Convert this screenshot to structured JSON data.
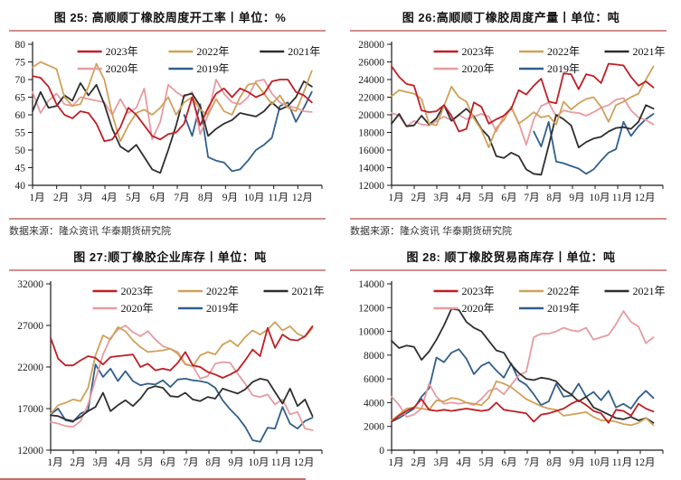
{
  "colors": {
    "red": "#bf1e24",
    "gold": "#d0a159",
    "dark": "#2e2e2e",
    "pink": "#e79ba1",
    "blue": "#315f8c",
    "rule": "#cf8f8d",
    "axis": "#1a1a1a"
  },
  "source_label": "数据来源：隆众资讯 华泰期货研究院",
  "x_labels": [
    "1月",
    "2月",
    "3月",
    "4月",
    "5月",
    "6月",
    "7月",
    "8月",
    "9月",
    "10月",
    "11月",
    "12月"
  ],
  "legend_rows": [
    [
      "2023年",
      "2022年",
      "2021年"
    ],
    [
      "2020年",
      "2019年"
    ]
  ],
  "chart_data": [
    {
      "id": "fig25",
      "type": "line",
      "title": "图 25: 高顺顺丁橡胶周度开工率丨单位：%",
      "ylim": [
        40,
        80
      ],
      "ystep": 5,
      "grid": false,
      "legend_position": "top-center",
      "series": [
        {
          "name": "2023年",
          "color": "red",
          "values": [
            71,
            70.5,
            68,
            63,
            60,
            59,
            61,
            60.5,
            57.5,
            52.5,
            53,
            56.5,
            62,
            60,
            57,
            54,
            53,
            54.5,
            55,
            57.5,
            65,
            57,
            62,
            66,
            67.5,
            65,
            67.5,
            66.5,
            65,
            66,
            69.5,
            70,
            70,
            66.5,
            65.5,
            63.5
          ]
        },
        {
          "name": "2022年",
          "color": "gold",
          "values": [
            73.5,
            75,
            74,
            73,
            65,
            62.5,
            63,
            68,
            74.5,
            70,
            60,
            52.5,
            57,
            60.5,
            61.5,
            60,
            62,
            65,
            60,
            63.5,
            65,
            61.5,
            60,
            64.5,
            61,
            60,
            65,
            68.5,
            69,
            66,
            63,
            65.5,
            62,
            61,
            66.5,
            72.5
          ]
        },
        {
          "name": "2021年",
          "color": "dark",
          "values": [
            61,
            66.5,
            62,
            62.5,
            65.5,
            64,
            69,
            65.5,
            68.5,
            63,
            56,
            51,
            49.5,
            51.5,
            48,
            44.5,
            43.5,
            50,
            57,
            65.5,
            66,
            62.5,
            54,
            56,
            57.5,
            58.5,
            60.5,
            60,
            59.5,
            61,
            63.5,
            61.5,
            62.5,
            65,
            69.5,
            68
          ]
        },
        {
          "name": "2020年",
          "color": "pink",
          "values": [
            66.5,
            60.5,
            64,
            66,
            63,
            62.5,
            65,
            64.5,
            64,
            63.5,
            60,
            64.5,
            60.5,
            62,
            67.5,
            53,
            58,
            68.5,
            66.5,
            65,
            66.5,
            54.5,
            60,
            70,
            66,
            63.5,
            63,
            65,
            69.5,
            70,
            66,
            63.5,
            62.5,
            62,
            61,
            60.8
          ]
        },
        {
          "name": "2019年",
          "color": "blue",
          "values": [
            null,
            null,
            null,
            null,
            null,
            null,
            null,
            null,
            null,
            null,
            null,
            null,
            null,
            null,
            null,
            null,
            null,
            null,
            null,
            60,
            54,
            63,
            48,
            47,
            46.5,
            44,
            44.5,
            47,
            50,
            51.5,
            53.5,
            62.5,
            63.5,
            58,
            62,
            66.5
          ]
        }
      ]
    },
    {
      "id": "fig26",
      "type": "line",
      "title": "图 26:高顺顺丁橡胶周度产量丨单位：吨",
      "ylim": [
        12000,
        28000
      ],
      "ystep": 2000,
      "grid": false,
      "legend_position": "top-center",
      "series": [
        {
          "name": "2023年",
          "color": "red",
          "values": [
            25500,
            24300,
            23500,
            23300,
            20500,
            20300,
            20400,
            21100,
            19900,
            18100,
            18400,
            21400,
            20900,
            19000,
            19500,
            19900,
            20700,
            22800,
            22300,
            23300,
            24100,
            21500,
            21300,
            24700,
            24600,
            22900,
            24600,
            24400,
            23600,
            25800,
            25700,
            25600,
            24300,
            23300,
            23800,
            23100
          ]
        },
        {
          "name": "2022年",
          "color": "gold",
          "values": [
            22100,
            22800,
            22600,
            22400,
            21800,
            19000,
            18800,
            21000,
            23200,
            22000,
            21500,
            19600,
            18300,
            16300,
            18500,
            19400,
            20900,
            19000,
            19600,
            20300,
            19700,
            19900,
            18900,
            21500,
            20600,
            21300,
            21800,
            22000,
            20900,
            19200,
            21100,
            21500,
            22000,
            22400,
            24000,
            25500
          ]
        },
        {
          "name": "2021年",
          "color": "dark",
          "values": [
            19000,
            20100,
            18700,
            18800,
            19900,
            18900,
            19600,
            21100,
            19300,
            20000,
            20700,
            19800,
            18400,
            17500,
            15300,
            15100,
            15700,
            15300,
            13800,
            13300,
            13200,
            16500,
            20000,
            19500,
            18800,
            16300,
            16900,
            17300,
            17500,
            18100,
            18500,
            18600,
            18400,
            19200,
            21100,
            20700
          ]
        },
        {
          "name": "2020年",
          "color": "pink",
          "values": [
            20200,
            19900,
            18700,
            19300,
            18900,
            18800,
            19300,
            19800,
            19400,
            20000,
            19500,
            19800,
            20100,
            19800,
            18100,
            19900,
            20800,
            19100,
            16600,
            19500,
            21000,
            21400,
            19800,
            20500,
            20300,
            20200,
            19900,
            20300,
            20800,
            21100,
            21700,
            21900,
            20500,
            19700,
            19400,
            18900
          ]
        },
        {
          "name": "2019年",
          "color": "blue",
          "values": [
            null,
            null,
            null,
            null,
            null,
            null,
            null,
            null,
            null,
            null,
            null,
            null,
            null,
            null,
            null,
            null,
            null,
            null,
            null,
            18100,
            16400,
            19200,
            14700,
            14500,
            14200,
            13900,
            13300,
            13800,
            14800,
            15700,
            16100,
            19200,
            17600,
            18700,
            19500,
            20100
          ]
        }
      ]
    },
    {
      "id": "fig27",
      "type": "line",
      "title": "图 27:顺丁橡胶企业库存丨单位：吨",
      "ylim": [
        12000,
        32000
      ],
      "ystep": 5000,
      "grid": false,
      "legend_position": "top-center",
      "series": [
        {
          "name": "2023年",
          "color": "red",
          "values": [
            25500,
            23000,
            22200,
            22200,
            22800,
            23300,
            23100,
            22300,
            23200,
            23300,
            23400,
            23500,
            22000,
            22400,
            21600,
            21800,
            21600,
            22500,
            23800,
            22200,
            22000,
            21400,
            21100,
            20700,
            21100,
            21600,
            22800,
            24100,
            23300,
            26700,
            24300,
            25900,
            25300,
            25200,
            25700,
            26900
          ]
        },
        {
          "name": "2022年",
          "color": "gold",
          "values": [
            16400,
            17400,
            17700,
            18100,
            17900,
            19500,
            23400,
            25800,
            25300,
            26800,
            26300,
            25200,
            24400,
            23800,
            23900,
            24000,
            24200,
            23600,
            22300,
            22100,
            23400,
            23800,
            23500,
            24700,
            25200,
            24500,
            25600,
            26400,
            25900,
            26500,
            27400,
            26400,
            26900,
            26000,
            25600,
            26700
          ]
        },
        {
          "name": "2021年",
          "color": "dark",
          "values": [
            16200,
            16100,
            15700,
            15500,
            16000,
            16700,
            17200,
            18900,
            16700,
            17400,
            18000,
            17300,
            18200,
            19400,
            19700,
            19500,
            18500,
            18400,
            18900,
            18100,
            17900,
            18400,
            18200,
            19400,
            19100,
            18800,
            19300,
            20200,
            20600,
            20400,
            19000,
            17600,
            19400,
            17300,
            18100,
            16100
          ]
        },
        {
          "name": "2020年",
          "color": "pink",
          "values": [
            15400,
            15200,
            14900,
            14800,
            15500,
            17500,
            20500,
            23500,
            25500,
            26500,
            27000,
            26200,
            25700,
            26300,
            25300,
            24500,
            24200,
            23800,
            22400,
            22100,
            20600,
            20900,
            22400,
            22600,
            22500,
            21200,
            20000,
            18600,
            18400,
            18700,
            17500,
            18100,
            16300,
            16600,
            14600,
            14400
          ]
        },
        {
          "name": "2019年",
          "color": "blue",
          "values": [
            16300,
            17000,
            15600,
            15400,
            16400,
            16800,
            22300,
            20800,
            21800,
            20300,
            21500,
            20300,
            19800,
            20000,
            19900,
            20400,
            19600,
            20500,
            20600,
            20400,
            20300,
            20100,
            19500,
            18000,
            16900,
            16000,
            14800,
            13200,
            13000,
            14700,
            14600,
            17200,
            15200,
            14600,
            15500,
            15900
          ]
        }
      ]
    },
    {
      "id": "fig28",
      "type": "line",
      "title": "图 28: 顺丁橡胶贸易商库存丨单位：吨",
      "ylim": [
        0,
        14000
      ],
      "ystep": 2000,
      "grid": false,
      "legend_position": "top-center",
      "series": [
        {
          "name": "2023年",
          "color": "red",
          "values": [
            2400,
            2900,
            3300,
            3600,
            4300,
            3400,
            3300,
            3400,
            3300,
            3400,
            3500,
            3400,
            3300,
            3400,
            4000,
            3400,
            3300,
            3200,
            3100,
            2400,
            3000,
            3100,
            3300,
            3500,
            3900,
            4200,
            3800,
            3300,
            3100,
            2300,
            3400,
            3300,
            2900,
            3900,
            3500,
            3250
          ]
        },
        {
          "name": "2022年",
          "color": "gold",
          "values": [
            2500,
            3000,
            3500,
            3600,
            3500,
            3400,
            4200,
            4100,
            4400,
            4300,
            4000,
            3900,
            3800,
            4400,
            5800,
            5600,
            5300,
            4800,
            4300,
            4000,
            3700,
            3500,
            3400,
            2900,
            3000,
            3100,
            3200,
            2800,
            2500,
            2500,
            2400,
            2200,
            2100,
            2300,
            2700,
            2100
          ]
        },
        {
          "name": "2021年",
          "color": "dark",
          "values": [
            9200,
            8600,
            8800,
            8700,
            7600,
            8300,
            9300,
            10500,
            11900,
            11800,
            10800,
            10300,
            10000,
            9200,
            8400,
            8200,
            7200,
            6500,
            6000,
            5900,
            6100,
            6000,
            5800,
            5100,
            4700,
            4100,
            4500,
            3600,
            3300,
            3000,
            2700,
            2600,
            2800,
            2500,
            2700,
            2300
          ]
        },
        {
          "name": "2020年",
          "color": "pink",
          "values": [
            4500,
            3800,
            2800,
            3000,
            3500,
            5600,
            4500,
            3900,
            4000,
            3900,
            4000,
            3800,
            4300,
            5000,
            5200,
            4700,
            5500,
            6300,
            6600,
            9500,
            9800,
            9800,
            10000,
            10300,
            10100,
            10000,
            10300,
            9300,
            9500,
            9700,
            10600,
            11700,
            10800,
            10400,
            9000,
            9500
          ]
        },
        {
          "name": "2019年",
          "color": "blue",
          "values": [
            2400,
            2700,
            3100,
            3500,
            4500,
            5200,
            7800,
            7400,
            8200,
            8500,
            7700,
            6400,
            7100,
            7400,
            6700,
            6100,
            7300,
            5900,
            5500,
            4700,
            3800,
            4100,
            5600,
            4500,
            4600,
            5600,
            4500,
            4900,
            4200,
            5000,
            3600,
            3900,
            3500,
            4400,
            5000,
            4400
          ]
        }
      ]
    }
  ]
}
